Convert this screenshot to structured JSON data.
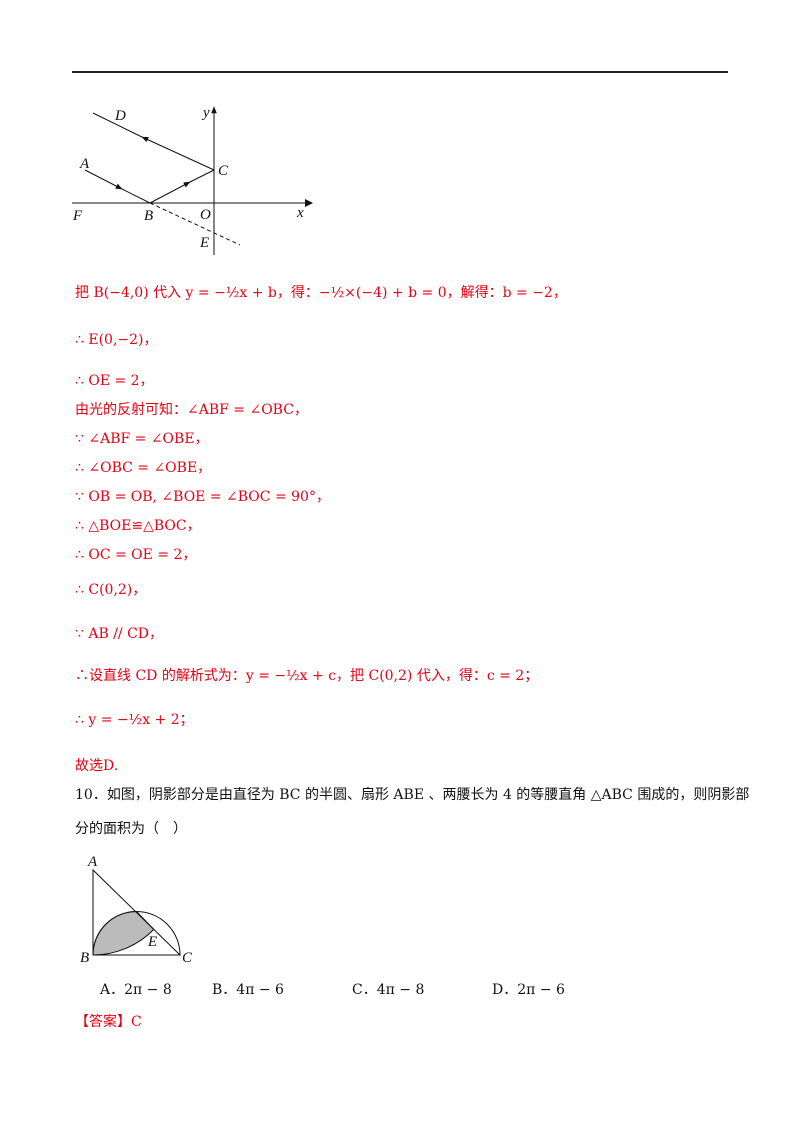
{
  "figure1": {
    "labels": {
      "D": "D",
      "y": "y",
      "A": "A",
      "C": "C",
      "F": "F",
      "B": "B",
      "O": "O",
      "x": "x",
      "E": "E"
    }
  },
  "solution": [
    "把 B(−4,0) 代入 y = −½x + b，得：−½×(−4) + b = 0，解得：b = −2，",
    "∴ E(0,−2)，",
    "∴ OE = 2，",
    "由光的反射可知：∠ABF = ∠OBC，",
    "∵ ∠ABF = ∠OBE，",
    "∴ ∠OBC = ∠OBE，",
    "∵ OB = OB, ∠BOE = ∠BOC = 90°，",
    "∴ △BOE≌△BOC，",
    "∴ OC = OE = 2，",
    "∴ C(0,2)，",
    "∵ AB // CD，",
    "∴设直线 CD 的解析式为：y = −½x + c，把 C(0,2) 代入，得：c = 2；",
    "∴ y = −½x + 2；",
    "故选D."
  ],
  "question": {
    "lines": [
      "10．如图，阴影部分是由直径为 BC 的半圆、扇形 ABE 、两腰长为 4 的等腰直角 △ABC 围成的，则阴影部",
      "分的面积为（　）"
    ],
    "figure_labels": {
      "A": "A",
      "B": "B",
      "E": "E",
      "C": "C"
    },
    "options": [
      "A．2π − 8",
      "B．4π − 6",
      "C．4π − 8",
      "D．2π − 6"
    ]
  },
  "answer": {
    "bracket": "【答案】",
    "value": "C"
  }
}
